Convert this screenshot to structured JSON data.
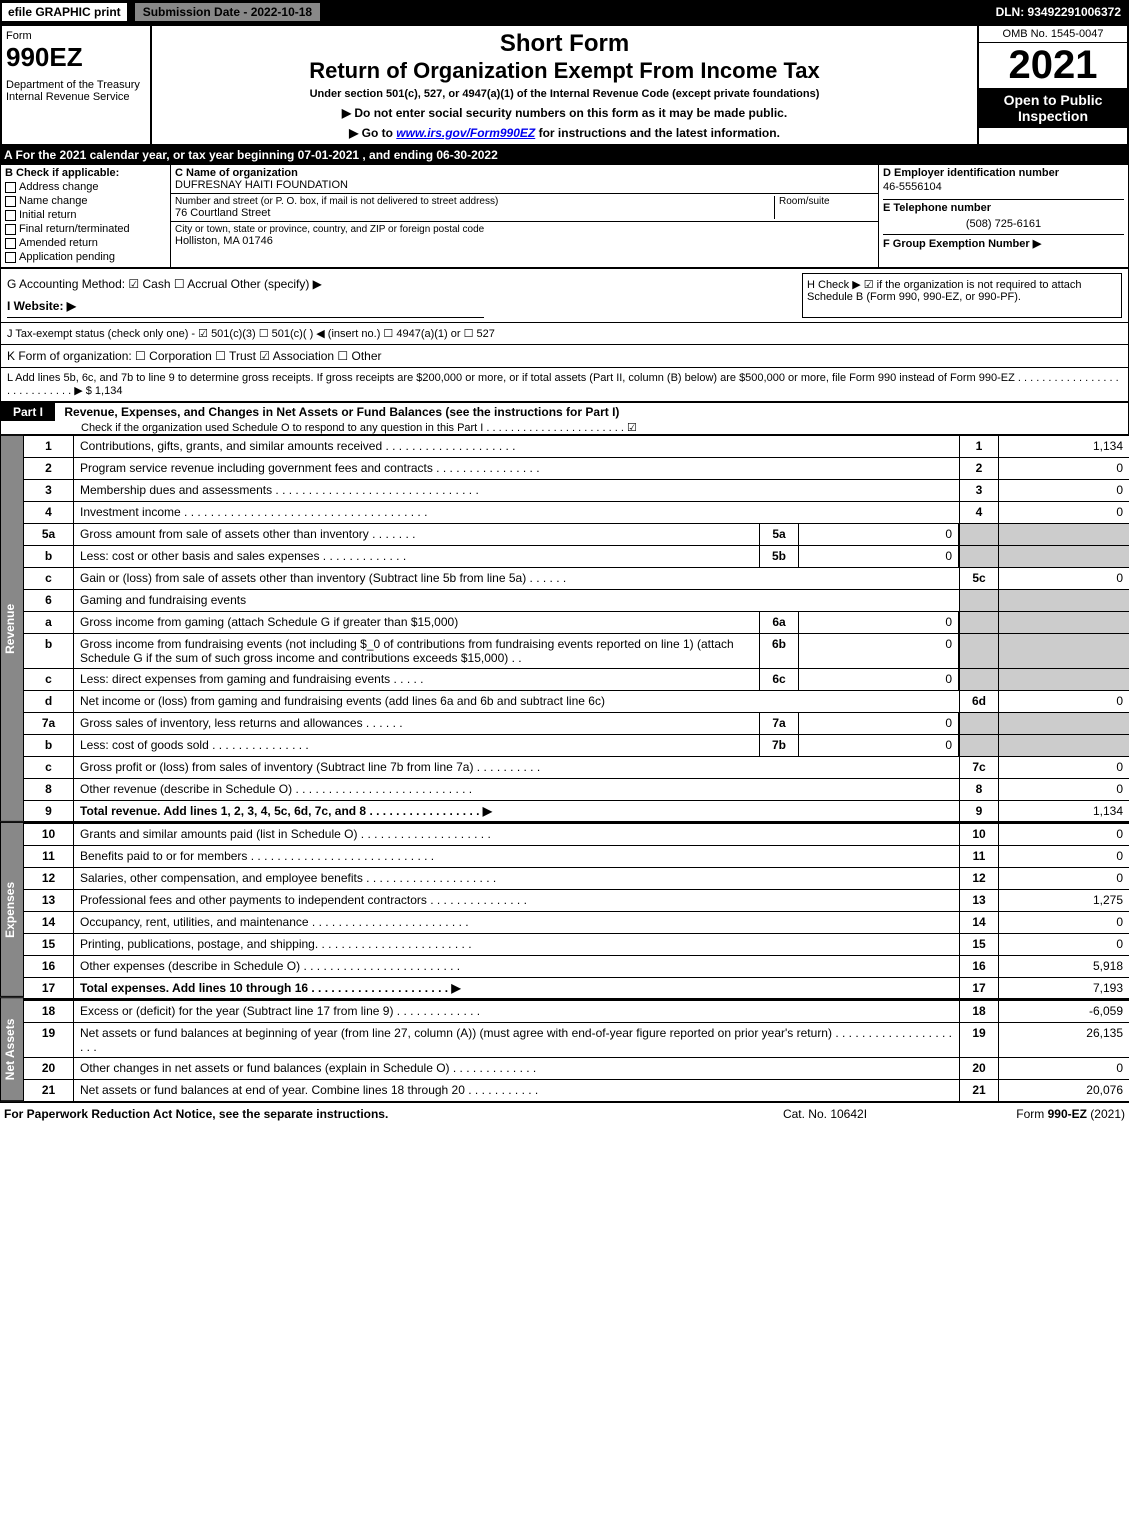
{
  "topbar": {
    "efile": "efile GRAPHIC print",
    "submission": "Submission Date - 2022-10-18",
    "dln": "DLN: 93492291006372"
  },
  "header": {
    "form_label": "Form",
    "form_no": "990EZ",
    "dept": "Department of the Treasury\nInternal Revenue Service",
    "short": "Short Form",
    "title": "Return of Organization Exempt From Income Tax",
    "subtitle": "Under section 501(c), 527, or 4947(a)(1) of the Internal Revenue Code (except private foundations)",
    "note1": "▶ Do not enter social security numbers on this form as it may be made public.",
    "note2_pre": "▶ Go to ",
    "note2_link": "www.irs.gov/Form990EZ",
    "note2_post": " for instructions and the latest information.",
    "omb": "OMB No. 1545-0047",
    "year": "2021",
    "open": "Open to Public Inspection"
  },
  "section_a": "A  For the 2021 calendar year, or tax year beginning 07-01-2021 , and ending 06-30-2022",
  "box_b": {
    "title": "B  Check if applicable:",
    "opts": [
      "Address change",
      "Name change",
      "Initial return",
      "Final return/terminated",
      "Amended return",
      "Application pending"
    ]
  },
  "box_c": {
    "name_lbl": "C Name of organization",
    "name": "DUFRESNAY HAITI FOUNDATION",
    "street_lbl": "Number and street (or P. O. box, if mail is not delivered to street address)",
    "room_lbl": "Room/suite",
    "street": "76 Courtland Street",
    "city_lbl": "City or town, state or province, country, and ZIP or foreign postal code",
    "city": "Holliston, MA  01746"
  },
  "box_d": {
    "d_lbl": "D Employer identification number",
    "d_val": "46-5556104",
    "e_lbl": "E Telephone number",
    "e_val": "(508) 725-6161",
    "f_lbl": "F Group Exemption Number  ▶"
  },
  "mid": {
    "g": "G Accounting Method:  ☑ Cash  ☐ Accrual  Other (specify) ▶",
    "h": "H  Check ▶ ☑ if the organization is not required to attach Schedule B (Form 990, 990-EZ, or 990-PF).",
    "i": "I Website: ▶",
    "j": "J Tax-exempt status (check only one) - ☑ 501(c)(3) ☐ 501(c)( ) ◀ (insert no.) ☐ 4947(a)(1) or ☐ 527",
    "k": "K Form of organization:  ☐ Corporation  ☐ Trust  ☑ Association  ☐ Other",
    "l": "L Add lines 5b, 6c, and 7b to line 9 to determine gross receipts. If gross receipts are $200,000 or more, or if total assets (Part II, column (B) below) are $500,000 or more, file Form 990 instead of Form 990-EZ . . . . . . . . . . . . . . . . . . . . . . . . . . . . ▶ $ 1,134"
  },
  "part1": {
    "label": "Part I",
    "title": "Revenue, Expenses, and Changes in Net Assets or Fund Balances (see the instructions for Part I)",
    "check": "Check if the organization used Schedule O to respond to any question in this Part I . . . . . . . . . . . . . . . . . . . . . . . ☑"
  },
  "tabs": {
    "rev": "Revenue",
    "exp": "Expenses",
    "net": "Net Assets"
  },
  "lines": {
    "l1": {
      "n": "1",
      "d": "Contributions, gifts, grants, and similar amounts received . . . . . . . . . . . . . . . . . . . .",
      "num": "1",
      "v": "1,134"
    },
    "l2": {
      "n": "2",
      "d": "Program service revenue including government fees and contracts . . . . . . . . . . . . . . . .",
      "num": "2",
      "v": "0"
    },
    "l3": {
      "n": "3",
      "d": "Membership dues and assessments . . . . . . . . . . . . . . . . . . . . . . . . . . . . . . .",
      "num": "3",
      "v": "0"
    },
    "l4": {
      "n": "4",
      "d": "Investment income . . . . . . . . . . . . . . . . . . . . . . . . . . . . . . . . . . . . .",
      "num": "4",
      "v": "0"
    },
    "l5a": {
      "n": "5a",
      "d": "Gross amount from sale of assets other than inventory . . . . . . .",
      "sl": "5a",
      "sv": "0"
    },
    "l5b": {
      "n": "b",
      "d": "Less: cost or other basis and sales expenses . . . . . . . . . . . . .",
      "sl": "5b",
      "sv": "0"
    },
    "l5c": {
      "n": "c",
      "d": "Gain or (loss) from sale of assets other than inventory (Subtract line 5b from line 5a) . . . . . .",
      "num": "5c",
      "v": "0"
    },
    "l6": {
      "n": "6",
      "d": "Gaming and fundraising events"
    },
    "l6a": {
      "n": "a",
      "d": "Gross income from gaming (attach Schedule G if greater than $15,000)",
      "sl": "6a",
      "sv": "0"
    },
    "l6b": {
      "n": "b",
      "d": "Gross income from fundraising events (not including $_0        of contributions from fundraising events reported on line 1) (attach Schedule G if the sum of such gross income and contributions exceeds $15,000)  . .",
      "sl": "6b",
      "sv": "0"
    },
    "l6c": {
      "n": "c",
      "d": "Less: direct expenses from gaming and fundraising events  . . . . .",
      "sl": "6c",
      "sv": "0"
    },
    "l6d": {
      "n": "d",
      "d": "Net income or (loss) from gaming and fundraising events (add lines 6a and 6b and subtract line 6c)",
      "num": "6d",
      "v": "0"
    },
    "l7a": {
      "n": "7a",
      "d": "Gross sales of inventory, less returns and allowances . . . . . .",
      "sl": "7a",
      "sv": "0"
    },
    "l7b": {
      "n": "b",
      "d": "Less: cost of goods sold         . . . . . . . . . . . . . . .",
      "sl": "7b",
      "sv": "0"
    },
    "l7c": {
      "n": "c",
      "d": "Gross profit or (loss) from sales of inventory (Subtract line 7b from line 7a) . . . . . . . . . .",
      "num": "7c",
      "v": "0"
    },
    "l8": {
      "n": "8",
      "d": "Other revenue (describe in Schedule O) . . . . . . . . . . . . . . . . . . . . . . . . . . .",
      "num": "8",
      "v": "0"
    },
    "l9": {
      "n": "9",
      "d": "Total revenue. Add lines 1, 2, 3, 4, 5c, 6d, 7c, and 8  . . . . . . . . . . . . . . . . .  ▶",
      "num": "9",
      "v": "1,134",
      "bold": true
    },
    "l10": {
      "n": "10",
      "d": "Grants and similar amounts paid (list in Schedule O) . . . . . . . . . . . . . . . . . . . .",
      "num": "10",
      "v": "0"
    },
    "l11": {
      "n": "11",
      "d": "Benefits paid to or for members   . . . . . . . . . . . . . . . . . . . . . . . . . . . .",
      "num": "11",
      "v": "0"
    },
    "l12": {
      "n": "12",
      "d": "Salaries, other compensation, and employee benefits . . . . . . . . . . . . . . . . . . . .",
      "num": "12",
      "v": "0"
    },
    "l13": {
      "n": "13",
      "d": "Professional fees and other payments to independent contractors . . . . . . . . . . . . . . .",
      "num": "13",
      "v": "1,275"
    },
    "l14": {
      "n": "14",
      "d": "Occupancy, rent, utilities, and maintenance . . . . . . . . . . . . . . . . . . . . . . . .",
      "num": "14",
      "v": "0"
    },
    "l15": {
      "n": "15",
      "d": "Printing, publications, postage, and shipping. . . . . . . . . . . . . . . . . . . . . . . .",
      "num": "15",
      "v": "0"
    },
    "l16": {
      "n": "16",
      "d": "Other expenses (describe in Schedule O)   . . . . . . . . . . . . . . . . . . . . . . . .",
      "num": "16",
      "v": "5,918"
    },
    "l17": {
      "n": "17",
      "d": "Total expenses. Add lines 10 through 16   . . . . . . . . . . . . . . . . . . . . .   ▶",
      "num": "17",
      "v": "7,193",
      "bold": true
    },
    "l18": {
      "n": "18",
      "d": "Excess or (deficit) for the year (Subtract line 17 from line 9)      . . . . . . . . . . . . .",
      "num": "18",
      "v": "-6,059"
    },
    "l19": {
      "n": "19",
      "d": "Net assets or fund balances at beginning of year (from line 27, column (A)) (must agree with end-of-year figure reported on prior year's return) . . . . . . . . . . . . . . . . . . . . .",
      "num": "19",
      "v": "26,135"
    },
    "l20": {
      "n": "20",
      "d": "Other changes in net assets or fund balances (explain in Schedule O) . . . . . . . . . . . . .",
      "num": "20",
      "v": "0"
    },
    "l21": {
      "n": "21",
      "d": "Net assets or fund balances at end of year. Combine lines 18 through 20 . . . . . . . . . . .",
      "num": "21",
      "v": "20,076"
    }
  },
  "footer": {
    "left": "For Paperwork Reduction Act Notice, see the separate instructions.",
    "mid": "Cat. No. 10642I",
    "right_pre": "Form ",
    "right_b": "990-EZ",
    "right_post": " (2021)"
  },
  "colors": {
    "black": "#000000",
    "gray": "#888888",
    "shade": "#cccccc",
    "link": "#0000ee"
  }
}
